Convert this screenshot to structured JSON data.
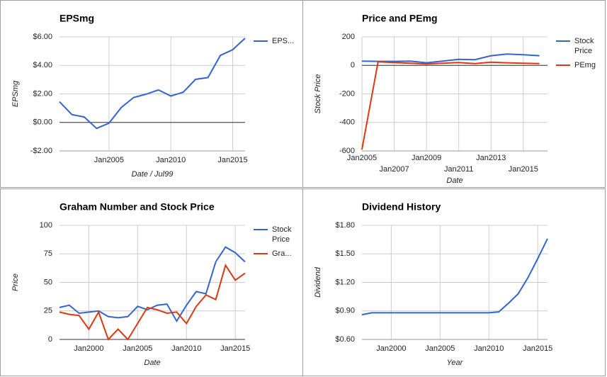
{
  "chart_data": [
    {
      "type": "line",
      "title": "EPSmg",
      "x_label": "Date / Jul99",
      "y_label": "EPSmg",
      "x": [
        2001,
        2002,
        2003,
        2004,
        2005,
        2006,
        2007,
        2008,
        2009,
        2010,
        2011,
        2012,
        2013,
        2014,
        2015,
        2016
      ],
      "series": [
        {
          "name": "EPS...",
          "color": "#3366cc",
          "values": [
            1.45,
            0.55,
            0.38,
            -0.42,
            -0.05,
            1.05,
            1.75,
            1.98,
            2.28,
            1.85,
            2.12,
            3.02,
            3.15,
            4.7,
            5.1,
            5.9
          ]
        }
      ],
      "xlim": [
        2001,
        2016
      ],
      "xticks": [
        {
          "value": 2005,
          "label": "Jan2005"
        },
        {
          "value": 2010,
          "label": "Jan2010"
        },
        {
          "value": 2015,
          "label": "Jan2015"
        }
      ],
      "ylim": [
        -2,
        6
      ],
      "yticks": [
        {
          "value": -2,
          "label": "-$2.00"
        },
        {
          "value": 0,
          "label": "$0.00"
        },
        {
          "value": 2,
          "label": "$2.00"
        },
        {
          "value": 4,
          "label": "$4.00"
        },
        {
          "value": 6,
          "label": "$6.00"
        }
      ],
      "grid": true,
      "legend": "right"
    },
    {
      "type": "line",
      "title": "Price and PEmg",
      "x_label": "Date",
      "y_label": "Stock Price",
      "x": [
        2005,
        2006,
        2007,
        2008,
        2009,
        2010,
        2011,
        2012,
        2013,
        2014,
        2015,
        2016
      ],
      "series": [
        {
          "name": "Stock Price",
          "color": "#3366cc",
          "values": [
            30,
            28,
            28,
            30,
            18,
            30,
            42,
            40,
            68,
            80,
            75,
            68
          ]
        },
        {
          "name": "PEmg",
          "color": "#dc3912",
          "values": [
            -590,
            25,
            20,
            15,
            10,
            15,
            20,
            12,
            22,
            18,
            15,
            12
          ]
        }
      ],
      "xlim": [
        2005,
        2016.5
      ],
      "xticks": [
        {
          "value": 2005,
          "label": "Jan2005"
        },
        {
          "value": 2007,
          "label": "Jan2007"
        },
        {
          "value": 2009,
          "label": "Jan2009"
        },
        {
          "value": 2011,
          "label": "Jan2011"
        },
        {
          "value": 2013,
          "label": "Jan2013"
        },
        {
          "value": 2015,
          "label": "Jan2015"
        }
      ],
      "ylim": [
        -600,
        200
      ],
      "yticks": [
        -600,
        -400,
        -200,
        0,
        200
      ],
      "grid": true,
      "legend": "right"
    },
    {
      "type": "line",
      "title": "Graham Number and Stock Price",
      "x_label": "Date",
      "y_label": "Price",
      "x": [
        1997,
        1998,
        1999,
        2000,
        2001,
        2002,
        2003,
        2004,
        2005,
        2006,
        2007,
        2008,
        2009,
        2010,
        2011,
        2012,
        2013,
        2014,
        2015,
        2016
      ],
      "series": [
        {
          "name": "Stock Price",
          "color": "#3366cc",
          "values": [
            28,
            30,
            23,
            24,
            25,
            20,
            19,
            20,
            29,
            26,
            30,
            31,
            16,
            30,
            42,
            40,
            68,
            81,
            76,
            68
          ]
        },
        {
          "name": "Gra...",
          "color": "#dc3912",
          "values": [
            24,
            22,
            21,
            9,
            24,
            0,
            9,
            0,
            14,
            28,
            26,
            23,
            24,
            14,
            29,
            39,
            35,
            65,
            52,
            58
          ]
        }
      ],
      "xlim": [
        1997,
        2016
      ],
      "xticks": [
        {
          "value": 2000,
          "label": "Jan2000"
        },
        {
          "value": 2005,
          "label": "Jan2005"
        },
        {
          "value": 2010,
          "label": "Jan2010"
        },
        {
          "value": 2015,
          "label": "Jan2015"
        }
      ],
      "ylim": [
        0,
        100
      ],
      "yticks": [
        0,
        25,
        50,
        75,
        100
      ],
      "grid": true,
      "legend": "right"
    },
    {
      "type": "line",
      "title": "Dividend History",
      "x_label": "Year",
      "y_label": "Dividend",
      "x": [
        1997,
        1998,
        1999,
        2000,
        2001,
        2002,
        2003,
        2004,
        2005,
        2006,
        2007,
        2008,
        2009,
        2010,
        2011,
        2012,
        2013,
        2014,
        2015,
        2016
      ],
      "series": [
        {
          "name": "Dividend",
          "color": "#3366cc",
          "values": [
            0.86,
            0.88,
            0.88,
            0.88,
            0.88,
            0.88,
            0.88,
            0.88,
            0.88,
            0.88,
            0.88,
            0.88,
            0.88,
            0.88,
            0.89,
            0.98,
            1.08,
            1.25,
            1.45,
            1.66
          ]
        }
      ],
      "xlim": [
        1997,
        2016
      ],
      "xticks": [
        {
          "value": 2000,
          "label": "Jan2000"
        },
        {
          "value": 2005,
          "label": "Jan2005"
        },
        {
          "value": 2010,
          "label": "Jan2010"
        },
        {
          "value": 2015,
          "label": "Jan2015"
        }
      ],
      "ylim": [
        0.6,
        1.8
      ],
      "yticks": [
        {
          "value": 0.6,
          "label": "$0.60"
        },
        {
          "value": 0.9,
          "label": "$0.90"
        },
        {
          "value": 1.2,
          "label": "$1.20"
        },
        {
          "value": 1.5,
          "label": "$1.50"
        },
        {
          "value": 1.8,
          "label": "$1.80"
        }
      ],
      "grid": true,
      "legend": "none"
    }
  ]
}
